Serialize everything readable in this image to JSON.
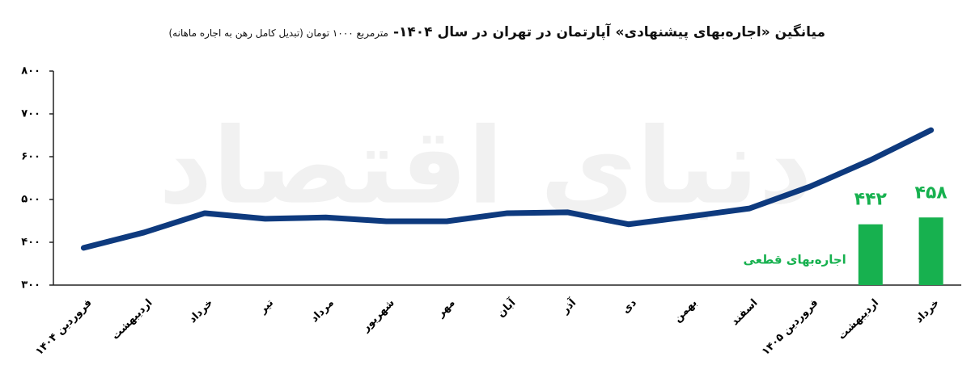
{
  "chart_data": {
    "type": "line",
    "title": "میانگین «اجاره‌بهای پیشنهادی» آپارتمان در تهران در سال ۱۴۰۴-",
    "subtitle": "مترمربع ۱۰۰۰ تومان (تبدیل کامل رهن به اجاره ماهانه)",
    "watermark": "دنیای اقتصاد",
    "categories": [
      "فروردین ۱۴۰۴",
      "اردیبهشت",
      "خرداد",
      "تیر",
      "مرداد",
      "شهریور",
      "مهر",
      "آبان",
      "آذر",
      "دی",
      "بهمن",
      "اسفند",
      "فروردین ۱۴۰۵",
      "اردیبهشت",
      "خرداد"
    ],
    "series": [
      {
        "type": "line",
        "color": "#0e3a7e",
        "values": [
          387,
          423,
          468,
          455,
          458,
          449,
          449,
          468,
          470,
          442,
          460,
          479,
          530,
          592,
          662
        ]
      },
      {
        "type": "bar",
        "name": "اجاره‌بهای قطعی",
        "color": "#17b14f",
        "values": [
          null,
          null,
          null,
          null,
          null,
          null,
          null,
          null,
          null,
          null,
          null,
          null,
          null,
          442,
          458
        ],
        "value_labels": [
          null,
          null,
          null,
          null,
          null,
          null,
          null,
          null,
          null,
          null,
          null,
          null,
          null,
          "۴۴۲",
          "۴۵۸"
        ]
      }
    ],
    "ylim": [
      300,
      800
    ],
    "yticks": [
      {
        "value": 300,
        "label": "۳۰۰"
      },
      {
        "value": 400,
        "label": "۴۰۰"
      },
      {
        "value": 500,
        "label": "۵۰۰"
      },
      {
        "value": 600,
        "label": "۶۰۰"
      },
      {
        "value": 700,
        "label": "۷۰۰"
      },
      {
        "value": 800,
        "label": "۸۰۰"
      }
    ],
    "grid": false
  }
}
